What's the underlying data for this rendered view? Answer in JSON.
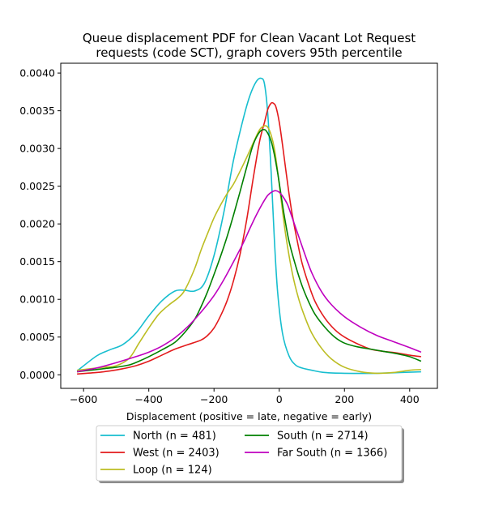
{
  "chart_data": {
    "type": "line",
    "title_line1": "Queue displacement PDF for Clean Vacant Lot Request",
    "title_line2": "requests (code SCT), graph covers 95th percentile",
    "xlabel": "Displacement (positive = late, negative = early)",
    "ylabel": "",
    "xlim": [
      -670,
      485
    ],
    "ylim": [
      -0.00018,
      0.00413
    ],
    "xticks": [
      -600,
      -400,
      -200,
      0,
      200,
      400
    ],
    "yticks": [
      0.0,
      0.0005,
      0.001,
      0.0015,
      0.002,
      0.0025,
      0.003,
      0.0035,
      0.004
    ],
    "xtick_labels": [
      "−600",
      "−400",
      "−200",
      "0",
      "200",
      "400"
    ],
    "ytick_labels": [
      "0.0000",
      "0.0005",
      "0.0010",
      "0.0015",
      "0.0020",
      "0.0025",
      "0.0030",
      "0.0035",
      "0.0040"
    ],
    "grid": false,
    "legend_placement": "below plot, two columns",
    "series": [
      {
        "name": "North (n = 481)",
        "color": "#17becf",
        "x": [
          -620,
          -560,
          -520,
          -480,
          -440,
          -400,
          -360,
          -320,
          -290,
          -260,
          -230,
          -200,
          -170,
          -140,
          -110,
          -90,
          -70,
          -55,
          -45,
          -35,
          -25,
          -15,
          -5,
          10,
          30,
          50,
          70,
          100,
          140,
          200,
          300,
          435
        ],
        "y": [
          5e-05,
          0.00025,
          0.00033,
          0.0004,
          0.00055,
          0.00078,
          0.00098,
          0.00111,
          0.00112,
          0.00111,
          0.00121,
          0.00158,
          0.00215,
          0.00285,
          0.0034,
          0.0037,
          0.00389,
          0.00393,
          0.00385,
          0.00345,
          0.0027,
          0.0018,
          0.0011,
          0.00055,
          0.00025,
          0.00013,
          9e-05,
          6e-05,
          3e-05,
          2e-05,
          2e-05,
          4e-05
        ]
      },
      {
        "name": "West (n = 2403)",
        "color": "#e31a1c",
        "x": [
          -620,
          -560,
          -520,
          -480,
          -440,
          -400,
          -360,
          -320,
          -280,
          -240,
          -220,
          -200,
          -180,
          -160,
          -140,
          -120,
          -100,
          -80,
          -60,
          -45,
          -35,
          -25,
          -18,
          -10,
          0,
          10,
          20,
          30,
          40,
          55,
          70,
          90,
          110,
          140,
          170,
          200,
          240,
          280,
          320,
          360,
          400,
          435
        ],
        "y": [
          1e-05,
          3e-05,
          5e-05,
          8e-05,
          0.00012,
          0.00018,
          0.00026,
          0.00034,
          0.0004,
          0.00046,
          0.00052,
          0.00062,
          0.00078,
          0.00098,
          0.00125,
          0.0016,
          0.00205,
          0.0026,
          0.0031,
          0.00335,
          0.00352,
          0.0036,
          0.0036,
          0.00355,
          0.00335,
          0.00305,
          0.00272,
          0.0024,
          0.00212,
          0.00178,
          0.00148,
          0.0012,
          0.00097,
          0.00075,
          0.0006,
          0.0005,
          0.00041,
          0.00034,
          0.00031,
          0.00029,
          0.00026,
          0.00024
        ]
      },
      {
        "name": "Loop (n = 124)",
        "color": "#bcbd22",
        "x": [
          -620,
          -580,
          -540,
          -500,
          -460,
          -430,
          -400,
          -370,
          -340,
          -310,
          -290,
          -260,
          -240,
          -220,
          -200,
          -180,
          -160,
          -140,
          -120,
          -100,
          -80,
          -60,
          -45,
          -35,
          -25,
          -15,
          -5,
          5,
          20,
          40,
          60,
          80,
          100,
          130,
          160,
          200,
          250,
          300,
          350,
          400,
          435
        ],
        "y": [
          6e-05,
          8e-05,
          0.0001,
          0.00012,
          0.00022,
          0.00042,
          0.00062,
          0.0008,
          0.00092,
          0.00102,
          0.00112,
          0.0014,
          0.00165,
          0.00187,
          0.00208,
          0.00225,
          0.0024,
          0.00253,
          0.0027,
          0.00288,
          0.00307,
          0.00325,
          0.0033,
          0.00328,
          0.00318,
          0.003,
          0.0027,
          0.00235,
          0.00185,
          0.00135,
          0.001,
          0.00075,
          0.00055,
          0.00035,
          0.00021,
          0.0001,
          4e-05,
          2e-05,
          3e-05,
          6e-05,
          7e-05
        ]
      },
      {
        "name": "South (n = 2714)",
        "color": "#008000",
        "x": [
          -620,
          -580,
          -540,
          -500,
          -460,
          -430,
          -400,
          -360,
          -320,
          -290,
          -260,
          -240,
          -220,
          -200,
          -180,
          -160,
          -140,
          -120,
          -100,
          -80,
          -60,
          -45,
          -35,
          -25,
          -15,
          -5,
          5,
          15,
          30,
          50,
          70,
          90,
          110,
          140,
          170,
          200,
          240,
          280,
          320,
          360,
          400,
          435
        ],
        "y": [
          4e-05,
          6e-05,
          8e-05,
          0.0001,
          0.00013,
          0.00018,
          0.00024,
          0.00033,
          0.00043,
          0.00056,
          0.00073,
          0.0009,
          0.0011,
          0.00133,
          0.00157,
          0.00183,
          0.00212,
          0.00243,
          0.00275,
          0.00305,
          0.00322,
          0.00325,
          0.0032,
          0.0031,
          0.00292,
          0.00268,
          0.0024,
          0.00212,
          0.00177,
          0.00145,
          0.00118,
          0.00097,
          0.0008,
          0.00063,
          0.0005,
          0.00042,
          0.00037,
          0.00034,
          0.00031,
          0.00028,
          0.00024,
          0.00018
        ]
      },
      {
        "name": "Far South (n = 1366)",
        "color": "#bf00bf",
        "x": [
          -620,
          -560,
          -500,
          -440,
          -400,
          -360,
          -320,
          -280,
          -240,
          -200,
          -170,
          -140,
          -110,
          -90,
          -70,
          -50,
          -35,
          -20,
          -10,
          0,
          10,
          25,
          40,
          60,
          80,
          100,
          130,
          160,
          200,
          250,
          300,
          350,
          400,
          435
        ],
        "y": [
          4e-05,
          9e-05,
          0.00016,
          0.00024,
          0.0003,
          0.00038,
          0.00049,
          0.00064,
          0.00083,
          0.00105,
          0.00126,
          0.0015,
          0.00175,
          0.00194,
          0.00212,
          0.00228,
          0.00238,
          0.00243,
          0.00244,
          0.00242,
          0.00237,
          0.00226,
          0.00208,
          0.00183,
          0.00158,
          0.00135,
          0.0011,
          0.00093,
          0.00077,
          0.00063,
          0.00052,
          0.00044,
          0.00036,
          0.0003
        ]
      }
    ]
  }
}
